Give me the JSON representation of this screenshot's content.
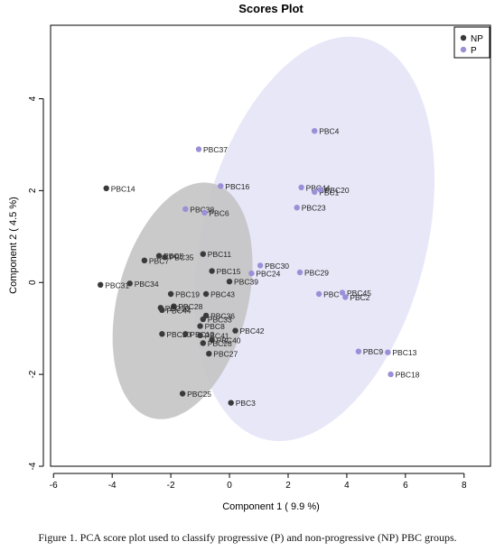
{
  "caption": "Figure 1. PCA score plot used to classify progressive (P) and non-progressive (NP) PBC groups.",
  "chart_data": {
    "type": "scatter",
    "title": "Scores Plot",
    "xlabel": "Component 1 ( 9.9 %)",
    "ylabel": "Component 2 ( 4.5 %)",
    "xlim": [
      -6.1,
      8.9
    ],
    "ylim": [
      -4.0,
      5.6
    ],
    "xticks": [
      -6,
      -4,
      -2,
      0,
      2,
      4,
      6,
      8
    ],
    "yticks": [
      -4,
      -2,
      0,
      2,
      4
    ],
    "legend": {
      "position": "top-right",
      "entries": [
        {
          "name": "NP",
          "color": "#3a3a3a"
        },
        {
          "name": "P",
          "color": "#9b8fd8"
        }
      ]
    },
    "ellipse_colors": {
      "NP": "#c4c4c4",
      "P": "#e4e3f7"
    },
    "ellipses": [
      {
        "group": "NP",
        "center": [
          -1.6,
          -0.4
        ],
        "rx": 2.05,
        "ry": 2.85,
        "angle_deg": -38
      },
      {
        "group": "P",
        "center": [
          2.9,
          0.95
        ],
        "rx": 3.55,
        "ry": 4.85,
        "angle_deg": -38
      }
    ],
    "series": [
      {
        "name": "NP",
        "points": [
          {
            "label": "PBC14",
            "x": -4.2,
            "y": 2.05
          },
          {
            "label": "PBC11",
            "x": -0.9,
            "y": 0.62
          },
          {
            "label": "PBC5",
            "x": -2.4,
            "y": 0.58
          },
          {
            "label": "PBC35",
            "x": -2.2,
            "y": 0.55
          },
          {
            "label": "PBC7",
            "x": -2.9,
            "y": 0.48
          },
          {
            "label": "PBC15",
            "x": -0.6,
            "y": 0.25
          },
          {
            "label": "PBC39",
            "x": 0.0,
            "y": 0.02
          },
          {
            "label": "PBC31",
            "x": -4.4,
            "y": -0.05
          },
          {
            "label": "PBC34",
            "x": -3.4,
            "y": -0.02
          },
          {
            "label": "PBC19",
            "x": -2.0,
            "y": -0.25
          },
          {
            "label": "PBC43",
            "x": -0.8,
            "y": -0.25
          },
          {
            "label": "PBC28",
            "x": -1.9,
            "y": -0.52
          },
          {
            "label": "PBC10",
            "x": -2.35,
            "y": -0.55
          },
          {
            "label": "PBC44",
            "x": -2.3,
            "y": -0.6
          },
          {
            "label": "PBC36",
            "x": -0.8,
            "y": -0.72
          },
          {
            "label": "PBC33",
            "x": -0.9,
            "y": -0.8
          },
          {
            "label": "PBC8",
            "x": -1.0,
            "y": -0.95
          },
          {
            "label": "PBC42",
            "x": 0.2,
            "y": -1.05
          },
          {
            "label": "PBC20",
            "x": -2.3,
            "y": -1.12
          },
          {
            "label": "PBC12",
            "x": -1.5,
            "y": -1.12
          },
          {
            "label": "PBC41",
            "x": -1.0,
            "y": -1.15
          },
          {
            "label": "PBC40",
            "x": -0.6,
            "y": -1.25
          },
          {
            "label": "PBC26",
            "x": -0.9,
            "y": -1.32
          },
          {
            "label": "PBC27",
            "x": -0.7,
            "y": -1.55
          },
          {
            "label": "PBC25",
            "x": -1.6,
            "y": -2.42
          },
          {
            "label": "PBC3",
            "x": 0.05,
            "y": -2.62
          }
        ]
      },
      {
        "name": "P",
        "points": [
          {
            "label": "PBC4",
            "x": 2.9,
            "y": 3.3
          },
          {
            "label": "PBC37",
            "x": -1.05,
            "y": 2.9
          },
          {
            "label": "PBC16",
            "x": -0.3,
            "y": 2.1
          },
          {
            "label": "PBC44",
            "x": 2.45,
            "y": 2.07
          },
          {
            "label": "PBC1",
            "x": 2.9,
            "y": 1.97
          },
          {
            "label": "PBC20",
            "x": 3.1,
            "y": 2.02
          },
          {
            "label": "PBC23",
            "x": 2.3,
            "y": 1.63
          },
          {
            "label": "PBC38",
            "x": -1.5,
            "y": 1.6
          },
          {
            "label": "PBC6",
            "x": -0.85,
            "y": 1.52
          },
          {
            "label": "PBC30",
            "x": 1.05,
            "y": 0.37
          },
          {
            "label": "PBC24",
            "x": 0.75,
            "y": 0.2
          },
          {
            "label": "PBC29",
            "x": 2.4,
            "y": 0.22
          },
          {
            "label": "PBC45",
            "x": 3.85,
            "y": -0.22
          },
          {
            "label": "PBC",
            "x": 3.05,
            "y": -0.25
          },
          {
            "label": "PBC2",
            "x": 3.95,
            "y": -0.32
          },
          {
            "label": "PBC9",
            "x": 4.4,
            "y": -1.5
          },
          {
            "label": "PBC13",
            "x": 5.4,
            "y": -1.52
          },
          {
            "label": "PBC18",
            "x": 5.5,
            "y": -2.0
          }
        ]
      }
    ],
    "grid": false
  }
}
